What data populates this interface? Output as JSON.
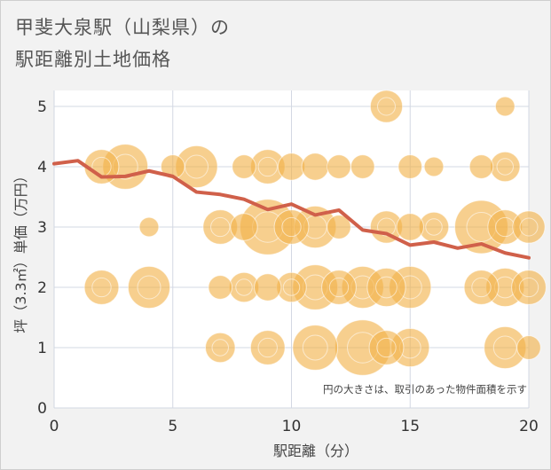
{
  "title_line1": "甲斐大泉駅（山梨県）の",
  "title_line2": "駅距離別土地価格",
  "chart_data": {
    "type": "scatter",
    "xlabel": "駅距離（分）",
    "ylabel": "坪（3.3㎡）単価（万円）",
    "xlim": [
      0,
      20
    ],
    "ylim": [
      0,
      5.2
    ],
    "x_ticks": [
      "0",
      "5",
      "10",
      "15",
      "20"
    ],
    "y_ticks": [
      "0",
      "1",
      "2",
      "3",
      "4",
      "5"
    ],
    "grid": true,
    "annotation": "円の大きさは、取引のあった物件面積を示す",
    "colors": {
      "bubble": "#f2b248",
      "line": "#d0604a",
      "plot_bg": "#ffffff",
      "grid": "#d3d8e3"
    },
    "bubbles": [
      {
        "x": 2,
        "y": 4,
        "size": 3
      },
      {
        "x": 3,
        "y": 4,
        "size": 6
      },
      {
        "x": 5,
        "y": 4,
        "size": 1
      },
      {
        "x": 6,
        "y": 4,
        "size": 5
      },
      {
        "x": 8,
        "y": 4,
        "size": 1
      },
      {
        "x": 9,
        "y": 4,
        "size": 3
      },
      {
        "x": 10,
        "y": 4,
        "size": 1.5
      },
      {
        "x": 11,
        "y": 4,
        "size": 1.5
      },
      {
        "x": 12,
        "y": 4,
        "size": 1
      },
      {
        "x": 13,
        "y": 4,
        "size": 1
      },
      {
        "x": 15,
        "y": 4,
        "size": 1
      },
      {
        "x": 16,
        "y": 4,
        "size": 0.5
      },
      {
        "x": 18,
        "y": 4,
        "size": 1
      },
      {
        "x": 19,
        "y": 4,
        "size": 2
      },
      {
        "x": 14,
        "y": 5,
        "size": 2.5
      },
      {
        "x": 19,
        "y": 5,
        "size": 0.5
      },
      {
        "x": 4,
        "y": 3,
        "size": 0.5
      },
      {
        "x": 7,
        "y": 3,
        "size": 3
      },
      {
        "x": 8,
        "y": 3,
        "size": 1.5
      },
      {
        "x": 9,
        "y": 3,
        "size": 10
      },
      {
        "x": 10,
        "y": 3,
        "size": 3
      },
      {
        "x": 11,
        "y": 3,
        "size": 5
      },
      {
        "x": 12,
        "y": 3,
        "size": 1
      },
      {
        "x": 14,
        "y": 3,
        "size": 2.5
      },
      {
        "x": 15,
        "y": 3,
        "size": 1.5
      },
      {
        "x": 16,
        "y": 3,
        "size": 2
      },
      {
        "x": 18,
        "y": 3,
        "size": 9
      },
      {
        "x": 19,
        "y": 3,
        "size": 3
      },
      {
        "x": 20,
        "y": 3,
        "size": 2.5
      },
      {
        "x": 2,
        "y": 2,
        "size": 3
      },
      {
        "x": 4,
        "y": 2,
        "size": 5
      },
      {
        "x": 7,
        "y": 2,
        "size": 1
      },
      {
        "x": 8,
        "y": 2,
        "size": 2
      },
      {
        "x": 9,
        "y": 2,
        "size": 1.5
      },
      {
        "x": 10,
        "y": 2,
        "size": 2
      },
      {
        "x": 11,
        "y": 2,
        "size": 6
      },
      {
        "x": 12,
        "y": 2,
        "size": 3
      },
      {
        "x": 13,
        "y": 2,
        "size": 5
      },
      {
        "x": 14,
        "y": 2,
        "size": 4
      },
      {
        "x": 15,
        "y": 2,
        "size": 5
      },
      {
        "x": 18,
        "y": 2,
        "size": 3
      },
      {
        "x": 19,
        "y": 2,
        "size": 4
      },
      {
        "x": 20,
        "y": 2,
        "size": 3
      },
      {
        "x": 7,
        "y": 1,
        "size": 2
      },
      {
        "x": 9,
        "y": 1,
        "size": 3
      },
      {
        "x": 11,
        "y": 1,
        "size": 6
      },
      {
        "x": 13,
        "y": 1,
        "size": 10
      },
      {
        "x": 14,
        "y": 1,
        "size": 3
      },
      {
        "x": 15,
        "y": 1,
        "size": 4
      },
      {
        "x": 19,
        "y": 1,
        "size": 5
      },
      {
        "x": 20,
        "y": 1,
        "size": 1
      }
    ],
    "series": [
      {
        "x": [
          0,
          1,
          2,
          3,
          4,
          5,
          6,
          7,
          8,
          9,
          10,
          11,
          12,
          13,
          14,
          15,
          16,
          17,
          18,
          19,
          20
        ],
        "values": [
          4.05,
          4.1,
          3.83,
          3.84,
          3.93,
          3.84,
          3.58,
          3.54,
          3.46,
          3.29,
          3.38,
          3.2,
          3.28,
          2.95,
          2.89,
          2.7,
          2.75,
          2.65,
          2.72,
          2.57,
          2.49
        ]
      }
    ]
  }
}
